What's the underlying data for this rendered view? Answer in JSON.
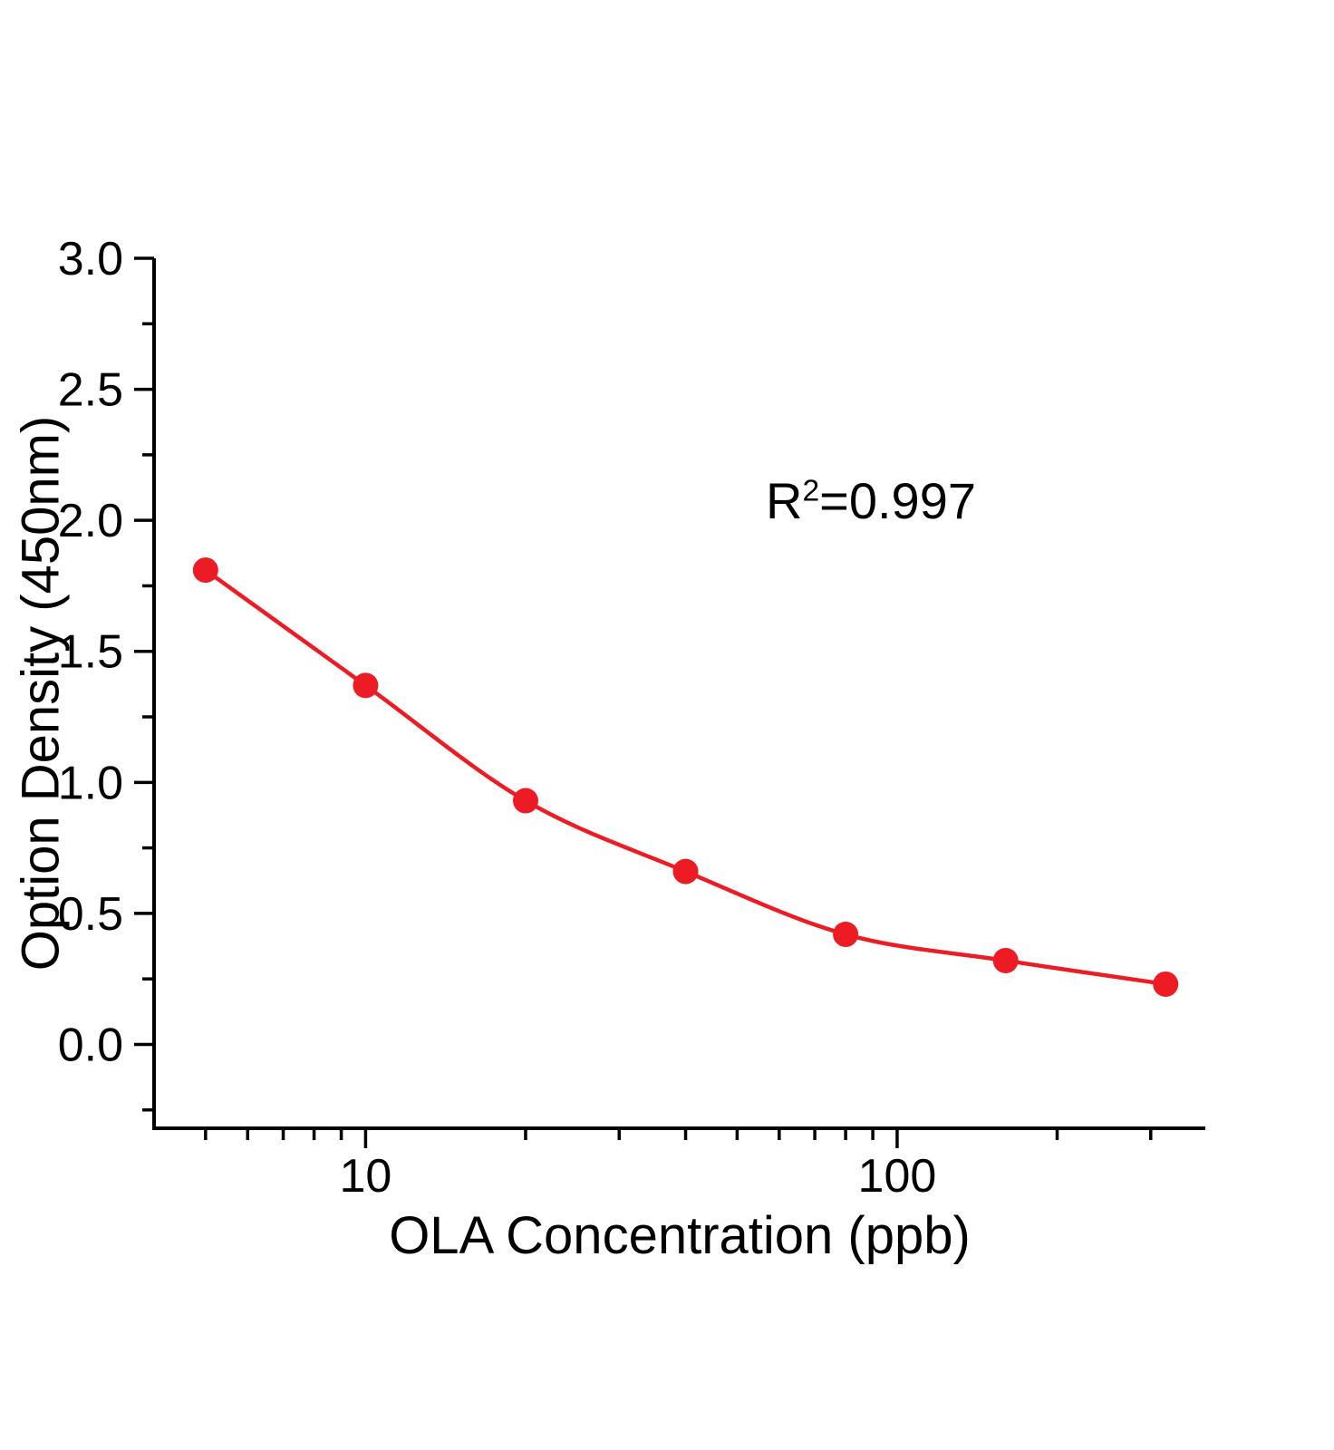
{
  "chart_data": {
    "type": "scatter",
    "x": [
      5,
      10,
      20,
      40,
      80,
      160,
      320
    ],
    "y": [
      1.81,
      1.37,
      0.93,
      0.66,
      0.42,
      0.32,
      0.23
    ],
    "x_scale": "log",
    "xlabel": "OLA Concentration (ppb)",
    "ylabel": "Option Density (450nm)",
    "xlim": [
      4,
      380
    ],
    "ylim": [
      -0.32,
      3.0
    ],
    "x_major_ticks": [
      10,
      100
    ],
    "x_minor_ticks": [
      5,
      6,
      7,
      8,
      9,
      20,
      30,
      40,
      50,
      60,
      70,
      80,
      90,
      200,
      300
    ],
    "y_major_ticks": [
      0.0,
      0.5,
      1.0,
      1.5,
      2.0,
      2.5,
      3.0
    ],
    "y_minor_ticks": [
      -0.25,
      0.25,
      0.75,
      1.25,
      1.75,
      2.25,
      2.75
    ],
    "annotation": {
      "base": "R",
      "sup": "2",
      "rest": "=0.997"
    },
    "line_color": "#ed1c24",
    "marker_color": "#ed1c24",
    "axis_color": "#000000",
    "grid": false,
    "legend": false,
    "marker_radius": 14,
    "line_width": 4.5
  }
}
